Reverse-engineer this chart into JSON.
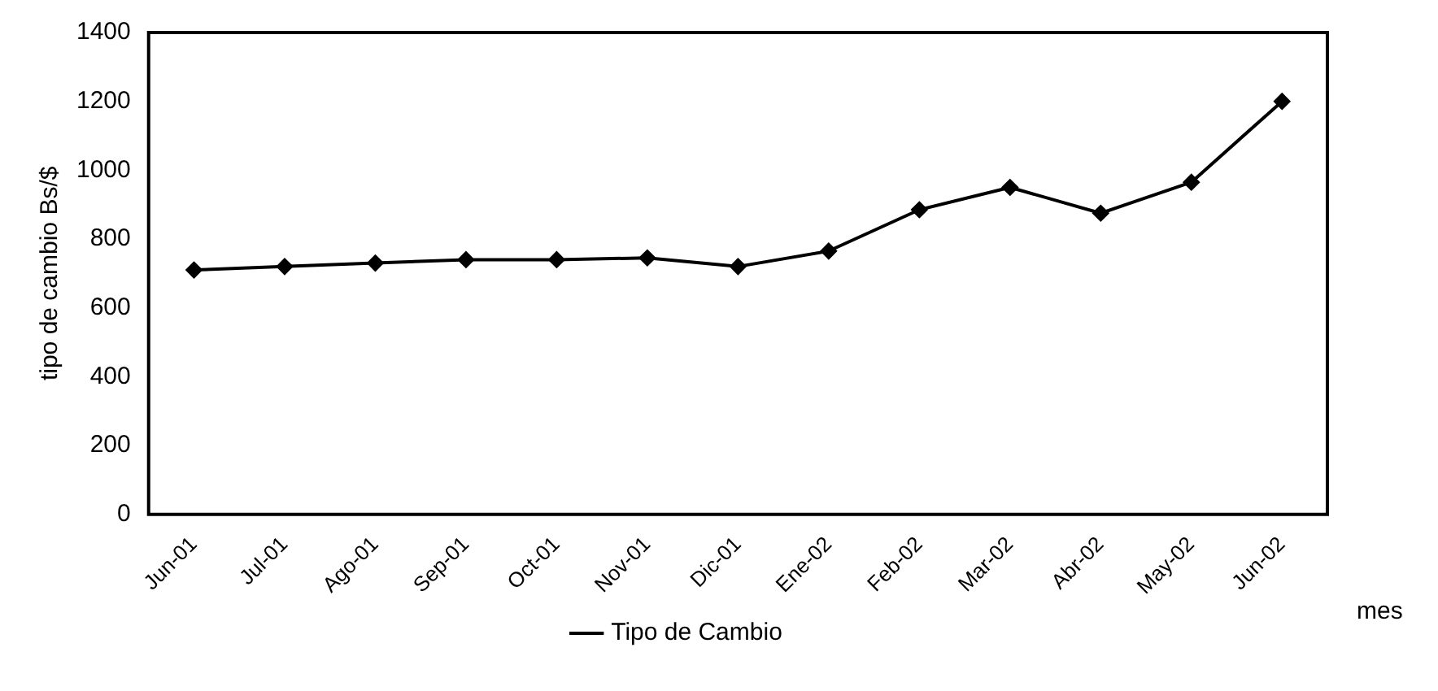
{
  "chart_data": {
    "type": "line",
    "xlabel": "mes",
    "ylabel": "tipo de cambio Bs/$",
    "categories": [
      "Jun-01",
      "Jul-01",
      "Ago-01",
      "Sep-01",
      "Oct-01",
      "Nov-01",
      "Dic-01",
      "Ene-02",
      "Feb-02",
      "Mar-02",
      "Abr-02",
      "May-02",
      "Jun-02"
    ],
    "series": [
      {
        "name": "Tipo de Cambio",
        "color": "#000000",
        "values": [
          710,
          720,
          730,
          740,
          740,
          745,
          720,
          765,
          885,
          950,
          875,
          965,
          1200
        ]
      }
    ],
    "ylim": [
      0,
      1400
    ],
    "yticks": [
      0,
      200,
      400,
      600,
      800,
      1000,
      1200,
      1400
    ],
    "grid": false,
    "legend": "bottom",
    "marker": "diamond",
    "line_style": "solid"
  }
}
